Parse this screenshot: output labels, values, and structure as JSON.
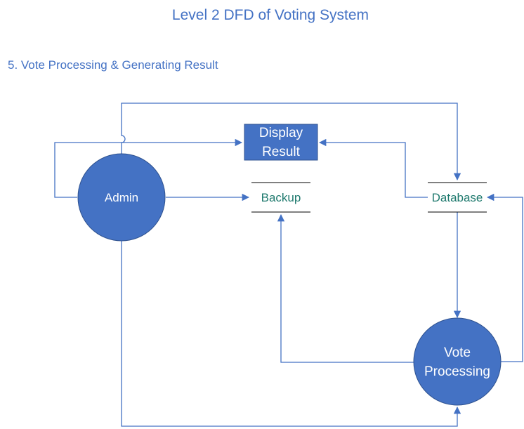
{
  "title": "Level 2 DFD of Voting System",
  "subtitle": "5. Vote Processing & Generating Result",
  "nodes": {
    "admin": "Admin",
    "display_result": [
      "Display",
      "Result"
    ],
    "backup": "Backup",
    "database": "Database",
    "vote_processing": [
      "Vote",
      "Processing"
    ]
  },
  "colors": {
    "process_fill": "#4472C4",
    "line": "#4472C4",
    "store_text": "#1F7A6E",
    "title": "#4472C4"
  }
}
